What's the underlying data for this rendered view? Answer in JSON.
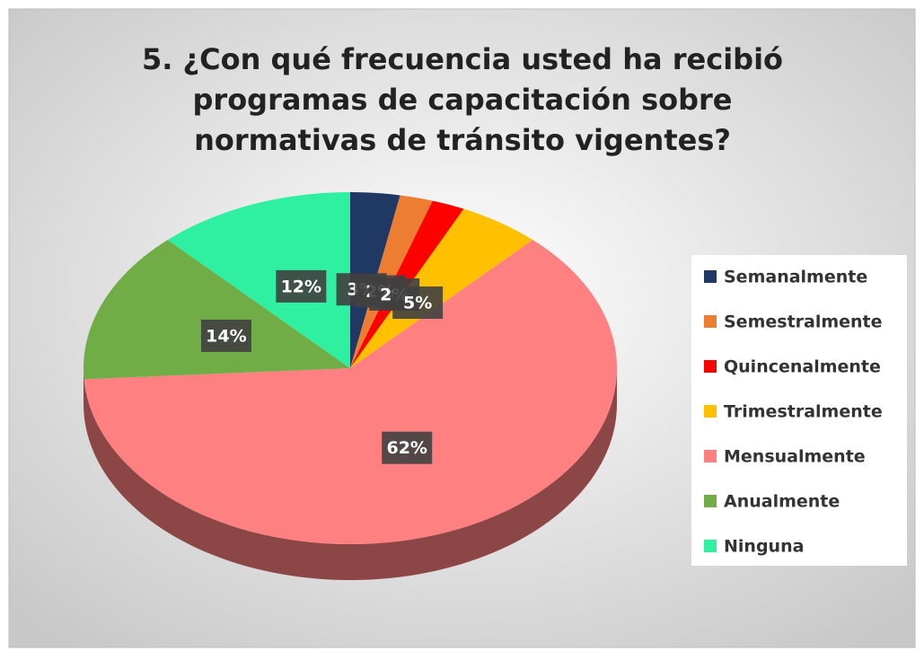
{
  "chart_data": {
    "type": "pie",
    "title": "5. ¿Con qué frecuencia usted ha recibió programas de capacitación sobre normativas de tránsito vigentes?",
    "categories": [
      "Semanalmente",
      "Semestralmente",
      "Quincenalmente",
      "Trimestralmente",
      "Mensualmente",
      "Anualmente",
      "Ninguna"
    ],
    "values": [
      3,
      2,
      2,
      5,
      62,
      14,
      12
    ],
    "value_labels": [
      "3%",
      "2%",
      "2%",
      "5%",
      "62%",
      "14%",
      "12%"
    ],
    "colors": [
      "#1f3864",
      "#ed7d31",
      "#ff0000",
      "#ffc000",
      "#ff8080",
      "#70ad47",
      "#2ef0a0"
    ],
    "legend": "right"
  }
}
